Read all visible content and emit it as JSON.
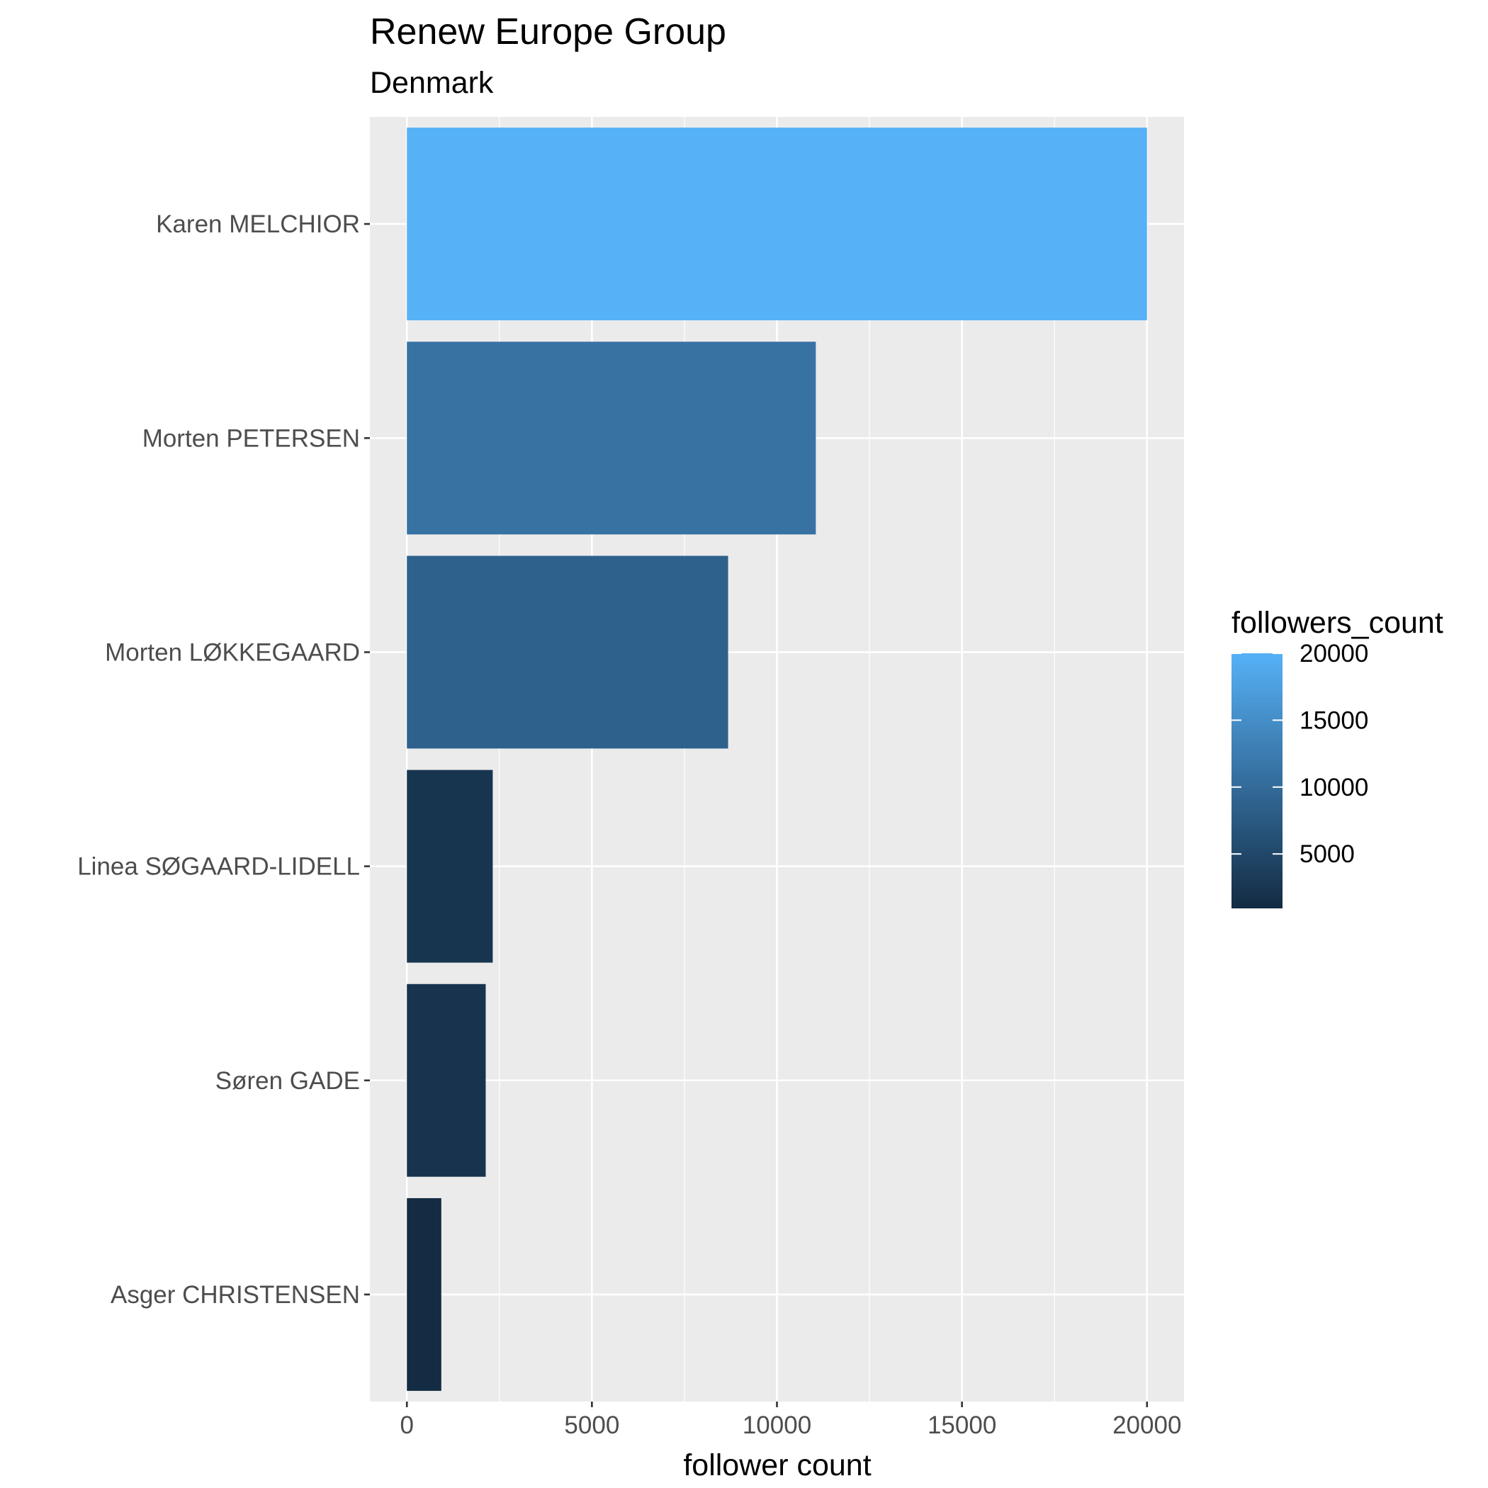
{
  "chart_data": {
    "type": "bar",
    "orientation": "horizontal",
    "title": "Renew Europe Group",
    "subtitle": "Denmark",
    "xlabel": "follower count",
    "ylabel": "",
    "categories": [
      "Karen MELCHIOR",
      "Morten PETERSEN",
      "Morten LØKKEGAARD",
      "Linea SØGAARD-LIDELL",
      "Søren GADE",
      "Asger CHRISTENSEN"
    ],
    "values": [
      20000,
      11050,
      8680,
      2320,
      2130,
      930
    ],
    "xlim": [
      -1000,
      21000
    ],
    "x_ticks": [
      0,
      5000,
      10000,
      15000,
      20000
    ],
    "x_tick_labels": [
      "0",
      "5000",
      "10000",
      "15000",
      "20000"
    ],
    "grid": true,
    "legend": {
      "title": "followers_count",
      "position": "right",
      "type": "colorbar",
      "range": [
        930,
        20000
      ],
      "ticks": [
        5000,
        10000,
        15000,
        20000
      ],
      "tick_labels": [
        "5000",
        "10000",
        "15000",
        "20000"
      ],
      "low_color": "#132B43",
      "high_color": "#56B1F7"
    },
    "colors": {
      "panel_background": "#EBEBEB",
      "grid_major": "#FFFFFF",
      "tick_color": "#333333"
    }
  }
}
